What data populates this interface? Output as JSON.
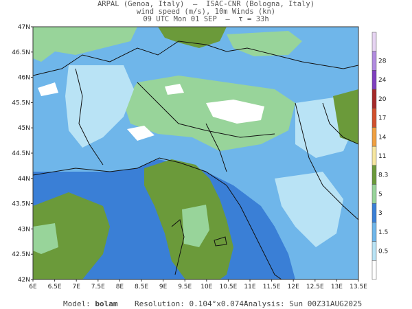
{
  "header": {
    "line1": "ARPAL (Genoa, Italy)  —  ISAC-CNR (Bologna, Italy)",
    "line2": "wind speed (m/s), 10m Winds (kn)",
    "line3": "09 UTC Mon 01 SEP  —  τ = 33h"
  },
  "footer": {
    "model_label": "Model:",
    "model_value": "bolam",
    "resolution_label": "Resolution:",
    "resolution_value": "0.104°x0.074°",
    "analysis_label": "Analysis:",
    "analysis_value": "Sun 00Z31AUG2025"
  },
  "map": {
    "lon_range": [
      6,
      13.5
    ],
    "lat_range": [
      42,
      47
    ],
    "lon_ticks": [
      "6E",
      "6.5E",
      "7E",
      "7.5E",
      "8E",
      "8.5E",
      "9E",
      "9.5E",
      "10E",
      "10.5E",
      "11E",
      "11.5E",
      "12E",
      "12.5E",
      "13E",
      "13.5E"
    ],
    "lat_ticks": [
      "47N",
      "46.5N",
      "46N",
      "45.5N",
      "45N",
      "44.5N",
      "44N",
      "43.5N",
      "43N",
      "42.5N",
      "42N"
    ]
  },
  "colorbar": {
    "labels": [
      "28",
      "24",
      "20",
      "17",
      "14",
      "11",
      "8.3",
      "5",
      "3",
      "1.5",
      "0.5"
    ],
    "colors": [
      "#e6d4f2",
      "#b18be0",
      "#7f3fbf",
      "#a52a2a",
      "#d2502d",
      "#f0a040",
      "#f6e6a0",
      "#6b9a3a",
      "#98d49a",
      "#3a7fd6",
      "#6fb6ea",
      "#b9e3f5",
      "#ffffff"
    ]
  },
  "field_colors": {
    "white": "#ffffff",
    "pale_blue": "#b9e3f5",
    "light_blue": "#6fb6ea",
    "blue": "#3a7fd6",
    "light_green": "#98d49a",
    "green": "#6b9a3a"
  }
}
